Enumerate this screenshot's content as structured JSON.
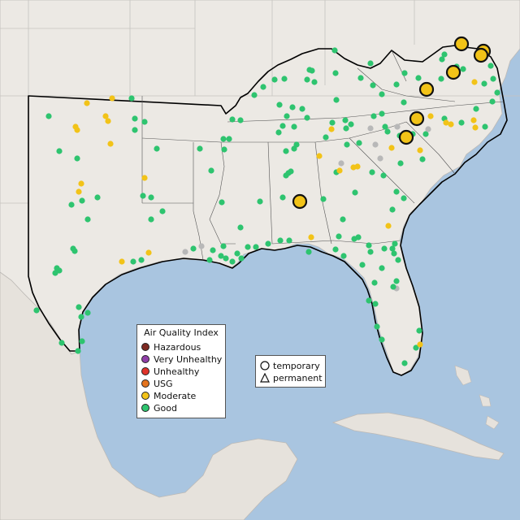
{
  "legend": {
    "title": "Air Quality Index",
    "items": [
      {
        "label": "Hazardous",
        "color": "#7e2a22"
      },
      {
        "label": "Very Unhealthy",
        "color": "#8f3fa8"
      },
      {
        "label": "Unhealthy",
        "color": "#e0342b"
      },
      {
        "label": "USG",
        "color": "#e4741e"
      },
      {
        "label": "Moderate",
        "color": "#f2c318"
      },
      {
        "label": "Good",
        "color": "#2ec46f"
      }
    ]
  },
  "monitor_type_legend": {
    "items": [
      {
        "label": "temporary",
        "icon": "circle-outline-icon"
      },
      {
        "label": "permanent",
        "icon": "triangle-outline-icon"
      }
    ]
  },
  "colors": {
    "water": "#a9c5e0",
    "land": "#ece9e4",
    "boundary": "#000000",
    "no_data_marker": "#b8b8b8"
  }
}
